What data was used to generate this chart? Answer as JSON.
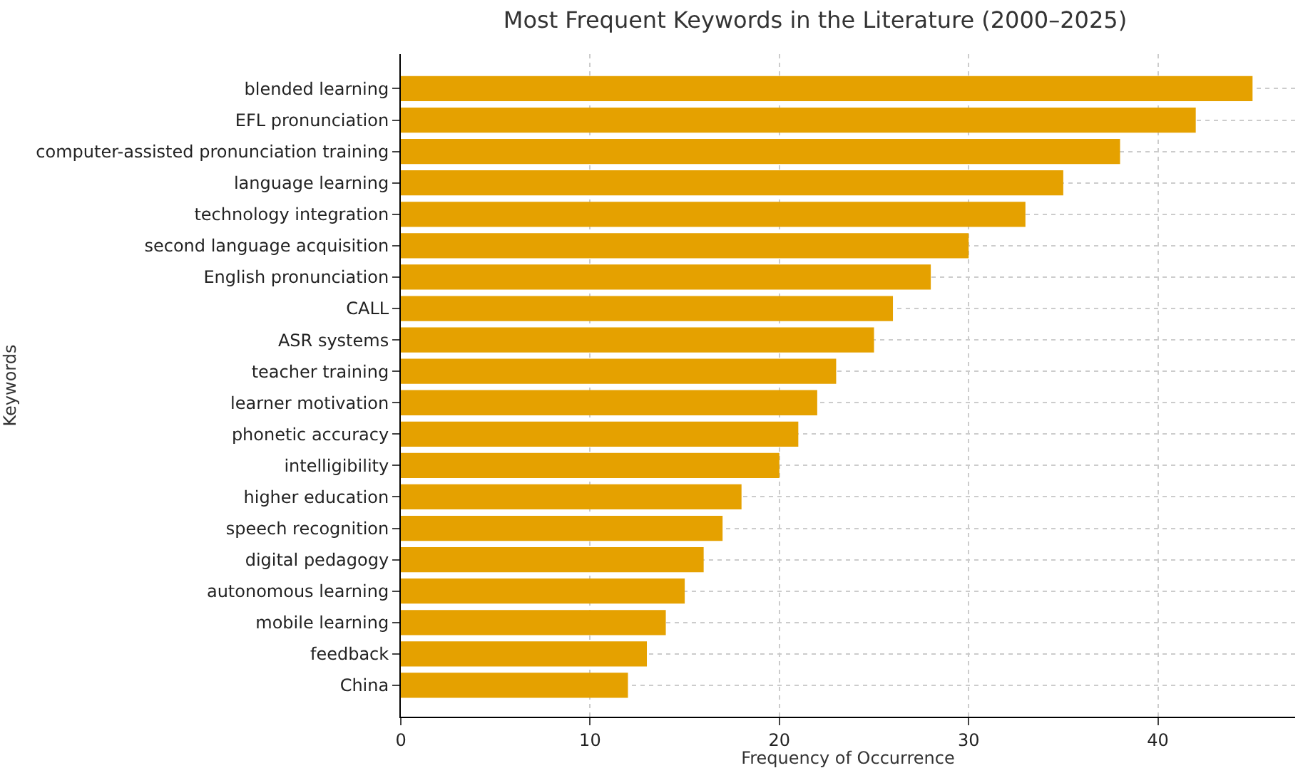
{
  "chart_data": {
    "type": "bar",
    "orientation": "horizontal",
    "title": "Most Frequent Keywords in the Literature (2000–2025)",
    "xlabel": "Frequency of Occurrence",
    "ylabel": "Keywords",
    "categories": [
      "blended learning",
      "EFL pronunciation",
      "computer-assisted pronunciation training",
      "language learning",
      "technology integration",
      "second language acquisition",
      "English pronunciation",
      "CALL",
      "ASR systems",
      "teacher training",
      "learner motivation",
      "phonetic accuracy",
      "intelligibility",
      "higher education",
      "speech recognition",
      "digital pedagogy",
      "autonomous learning",
      "mobile learning",
      "feedback",
      "China"
    ],
    "values": [
      45,
      42,
      38,
      35,
      33,
      30,
      28,
      26,
      25,
      23,
      22,
      21,
      20,
      18,
      17,
      16,
      15,
      14,
      13,
      12
    ],
    "color": "#e5a100",
    "xlim": [
      0,
      47.25
    ],
    "xticks": [
      0,
      10,
      20,
      30,
      40
    ],
    "grid": true
  }
}
